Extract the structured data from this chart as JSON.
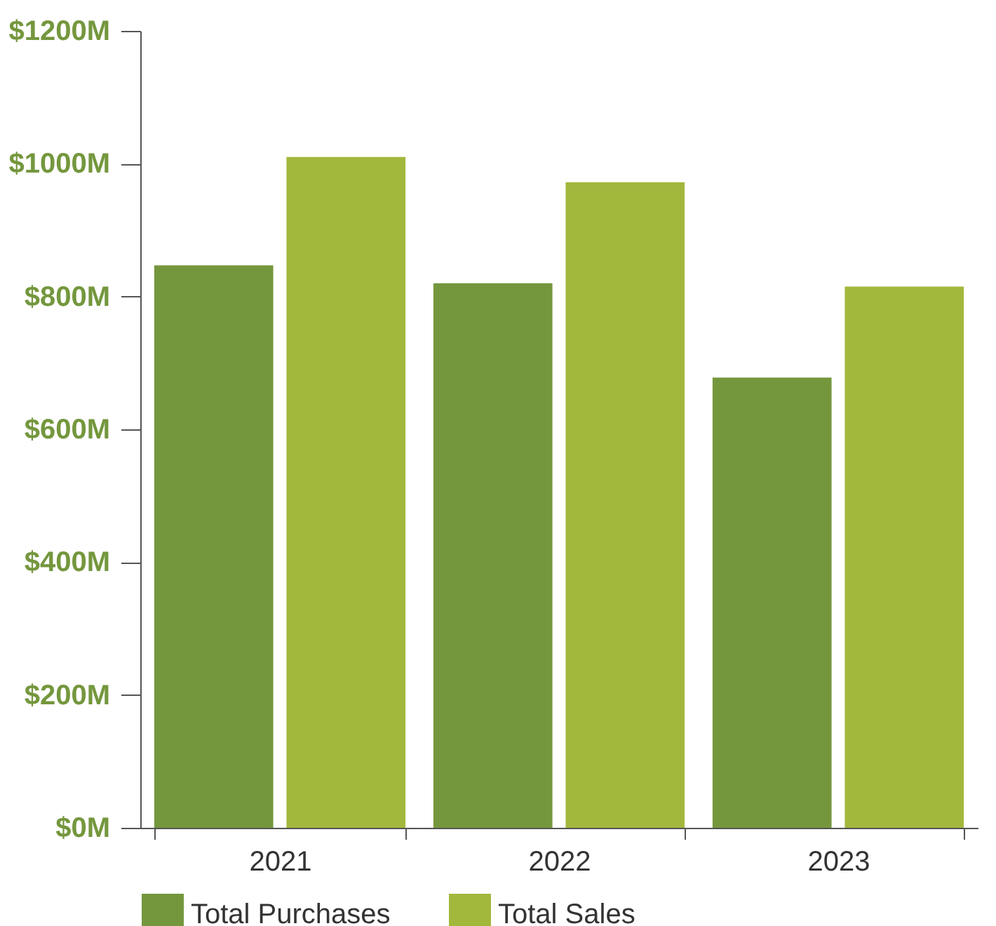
{
  "chart_data": {
    "type": "bar",
    "categories": [
      "2021",
      "2022",
      "2023"
    ],
    "series": [
      {
        "name": "Total Purchases",
        "color": "#74973d",
        "values": [
          847,
          820,
          678
        ]
      },
      {
        "name": "Total Sales",
        "color": "#a2b83c",
        "values": [
          1010,
          972,
          815
        ]
      }
    ],
    "ylim": [
      0,
      1200
    ],
    "yticks": [
      {
        "value": 0,
        "label": "$0M"
      },
      {
        "value": 200,
        "label": "$200M"
      },
      {
        "value": 400,
        "label": "$400M"
      },
      {
        "value": 600,
        "label": "$600M"
      },
      {
        "value": 800,
        "label": "$800M"
      },
      {
        "value": 1000,
        "label": "$1000M"
      },
      {
        "value": 1200,
        "label": "$1200M"
      }
    ],
    "grid": false,
    "legend": "bottom left"
  }
}
